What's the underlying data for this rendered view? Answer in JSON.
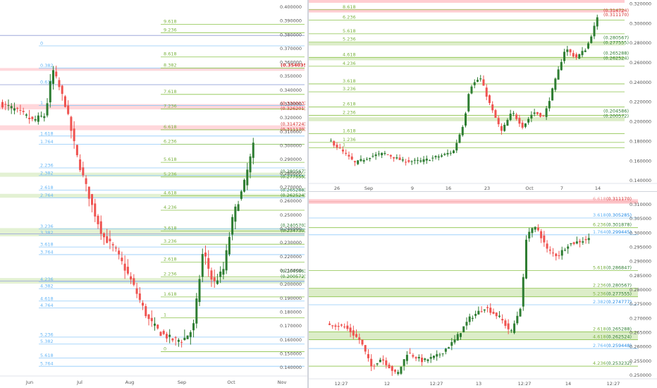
{
  "colors": {
    "up": "#26a69a",
    "up_dark": "#2e7d32",
    "down": "#ef5350",
    "fib_green": "#8bc34a",
    "fib_blue": "#90caf9",
    "fib_purple": "#9fa8da",
    "fib_red_zone": "#ffcdd2",
    "fib_green_zone": "#dcedc8",
    "label_green": "#2e7d32",
    "label_red": "#d32f2f",
    "axis_text": "#555555",
    "grid": "#eef0f3"
  },
  "chart_data": [
    {
      "type": "candlestick",
      "name": "left-panel",
      "x_labels": [
        "Jun",
        "Jul",
        "Aug",
        "Sep",
        "Oct",
        "Nov"
      ],
      "y_ticks": [
        "0.400000",
        "0.390000",
        "0.380000",
        "0.370000",
        "0.360000",
        "0.350000",
        "0.340000",
        "0.330000",
        "0.320000",
        "0.310000",
        "0.300000",
        "0.290000",
        "0.280000",
        "0.270000",
        "0.260000",
        "0.250000",
        "0.240000",
        "0.230000",
        "0.220000",
        "0.210000",
        "0.200000",
        "0.190000",
        "0.180000",
        "0.170000",
        "0.160000",
        "0.150000",
        "0.140000"
      ],
      "ylim": [
        0.135,
        0.402
      ],
      "fib_levels": [
        {
          "label": "9.618",
          "y": 0.3875,
          "color": "green"
        },
        {
          "label": "9.236",
          "y": 0.3815,
          "color": "green"
        },
        {
          "label": "8.618",
          "y": 0.364,
          "color": "green"
        },
        {
          "label": "8.382",
          "y": 0.356,
          "color": "green",
          "price": "(0.354035)",
          "price_color": "red",
          "bold": true
        },
        {
          "label": "7.618",
          "y": 0.337,
          "color": "green"
        },
        {
          "label": "7.236",
          "y": 0.3265,
          "color": "green",
          "price": "(0.330003)",
          "price2": "(0.326201)",
          "price_color": "red"
        },
        {
          "label": "6.618",
          "y": 0.3115,
          "color": "green",
          "price": "(0.314724)",
          "price2": "(0.311170)",
          "price_color": "red"
        },
        {
          "label": "6.236",
          "y": 0.301,
          "color": "green"
        },
        {
          "label": "5.618",
          "y": 0.288,
          "color": "green"
        },
        {
          "label": "5.236",
          "y": 0.2775,
          "color": "green",
          "price": "(0.280567)",
          "price2": "(0.277555)",
          "price_color": "green"
        },
        {
          "label": "4.618",
          "y": 0.264,
          "color": "green",
          "price": "(0.265288)",
          "price2": "(0.262524)",
          "price_color": "green"
        },
        {
          "label": "4.236",
          "y": 0.2535,
          "color": "green"
        },
        {
          "label": "3.618",
          "y": 0.2385,
          "color": "green",
          "price": "(0.240570)",
          "price2": "(0.234730)",
          "price_color": "green"
        },
        {
          "label": "3.236",
          "y": 0.229,
          "color": "green"
        },
        {
          "label": "2.618",
          "y": 0.216,
          "color": "green"
        },
        {
          "label": "2.236",
          "y": 0.2055,
          "color": "green",
          "price": "(0.204586)",
          "price2": "(0.200572)",
          "price_color": "green"
        },
        {
          "label": "1.618",
          "y": 0.191,
          "color": "green"
        },
        {
          "label": "1",
          "y": 0.176,
          "color": "green"
        },
        {
          "label": "0",
          "y": 0.1515,
          "color": "green"
        }
      ],
      "fib_levels_left": [
        {
          "label": "0",
          "y": 0.372
        },
        {
          "label": "0.382",
          "y": 0.356
        },
        {
          "label": "0.618",
          "y": 0.344
        },
        {
          "label": "1",
          "y": 0.329
        },
        {
          "label": "1.618",
          "y": 0.307
        },
        {
          "label": "1.764",
          "y": 0.301
        },
        {
          "label": "2.236",
          "y": 0.284
        },
        {
          "label": "2.382",
          "y": 0.2785
        },
        {
          "label": "2.618",
          "y": 0.268
        },
        {
          "label": "2.764",
          "y": 0.2625
        },
        {
          "label": "3.236",
          "y": 0.24
        },
        {
          "label": "3.382",
          "y": 0.2355
        },
        {
          "label": "3.618",
          "y": 0.227
        },
        {
          "label": "3.764",
          "y": 0.2215
        },
        {
          "label": "4.236",
          "y": 0.202
        },
        {
          "label": "4.382",
          "y": 0.197
        },
        {
          "label": "4.618",
          "y": 0.188
        },
        {
          "label": "4.764",
          "y": 0.183
        },
        {
          "label": "5.236",
          "y": 0.162
        },
        {
          "label": "5.382",
          "y": 0.157
        },
        {
          "label": "5.618",
          "y": 0.147
        },
        {
          "label": "5.764",
          "y": 0.141
        }
      ]
    },
    {
      "type": "candlestick",
      "name": "top-right-panel",
      "x_labels": [
        "26",
        "Sep",
        "9",
        "16",
        "23",
        "Oct",
        "7",
        "14"
      ],
      "y_ticks": [
        "0.320000",
        "0.300000",
        "0.280000",
        "0.260000",
        "0.240000",
        "0.220000",
        "0.200000",
        "0.180000",
        "0.160000",
        "0.140000"
      ],
      "ylim": [
        0.138,
        0.321
      ],
      "fib_levels": [
        {
          "label": "8.618",
          "y": 0.314
        },
        {
          "label": "6.236",
          "y": 0.3035
        },
        {
          "label": "5.618",
          "y": 0.2895
        },
        {
          "label": "5.236",
          "y": 0.281,
          "price": "(0.280567)",
          "price2": "(0.277555)"
        },
        {
          "label": "4.618",
          "y": 0.2655,
          "price": "(0.265288)",
          "price2": "(0.262524)"
        },
        {
          "label": "4.236",
          "y": 0.2565
        },
        {
          "label": "3.618",
          "y": 0.2385
        },
        {
          "label": "3.236",
          "y": 0.2305
        },
        {
          "label": "2.618",
          "y": 0.215
        },
        {
          "label": "2.236",
          "y": 0.2065,
          "price": "(0.204586)",
          "price2": "(0.200572)"
        },
        {
          "label": "1.618",
          "y": 0.188
        },
        {
          "label": "1.236",
          "y": 0.179
        },
        {
          "label": "1",
          "y": 0.1735
        }
      ],
      "top_prices": {
        "a": "(0.314724)",
        "b": "(0.311170)"
      }
    },
    {
      "type": "candlestick",
      "name": "bottom-right-panel",
      "x_labels": [
        "12:27",
        "12",
        "12:27",
        "13",
        "12:27",
        "14",
        "12:27"
      ],
      "y_ticks": [
        "0.310000",
        "0.305000",
        "0.300000",
        "0.295000",
        "0.290000",
        "0.285000",
        "0.280000",
        "0.275000",
        "0.270000",
        "0.265000",
        "0.260000",
        "0.255000",
        "0.250000"
      ],
      "ylim": [
        0.2495,
        0.3115
      ],
      "fib_levels": [
        {
          "label": "6.618",
          "price": "(0.311170)",
          "y": 0.311,
          "color": "red"
        },
        {
          "label": "3.618",
          "price": "(0.305285)",
          "y": 0.3053,
          "color": "blue"
        },
        {
          "label": "6.236",
          "price": "(0.301878)",
          "y": 0.3019,
          "color": "green"
        },
        {
          "label": "1.764",
          "price": "(0.299445)",
          "y": 0.2994,
          "color": "blue"
        },
        {
          "label": "5.618",
          "price": "(0.286847)",
          "y": 0.2868,
          "color": "green"
        },
        {
          "label": "2.236",
          "price": "(0.280567)",
          "y": 0.2806,
          "color": "green"
        },
        {
          "label": "5.236",
          "price": "(0.277555)",
          "y": 0.2776,
          "color": "green"
        },
        {
          "label": "2.382",
          "price": "(0.274777)",
          "y": 0.2748,
          "color": "blue"
        },
        {
          "label": "2.618",
          "price": "(0.265288)",
          "y": 0.2653,
          "color": "green"
        },
        {
          "label": "4.618",
          "price": "(0.262524)",
          "y": 0.2625,
          "color": "green"
        },
        {
          "label": "2.764",
          "price": "(0.259448)",
          "y": 0.2594,
          "color": "blue"
        },
        {
          "label": "4.236",
          "price": "(0.253232)",
          "y": 0.2532,
          "color": "green"
        }
      ]
    }
  ]
}
